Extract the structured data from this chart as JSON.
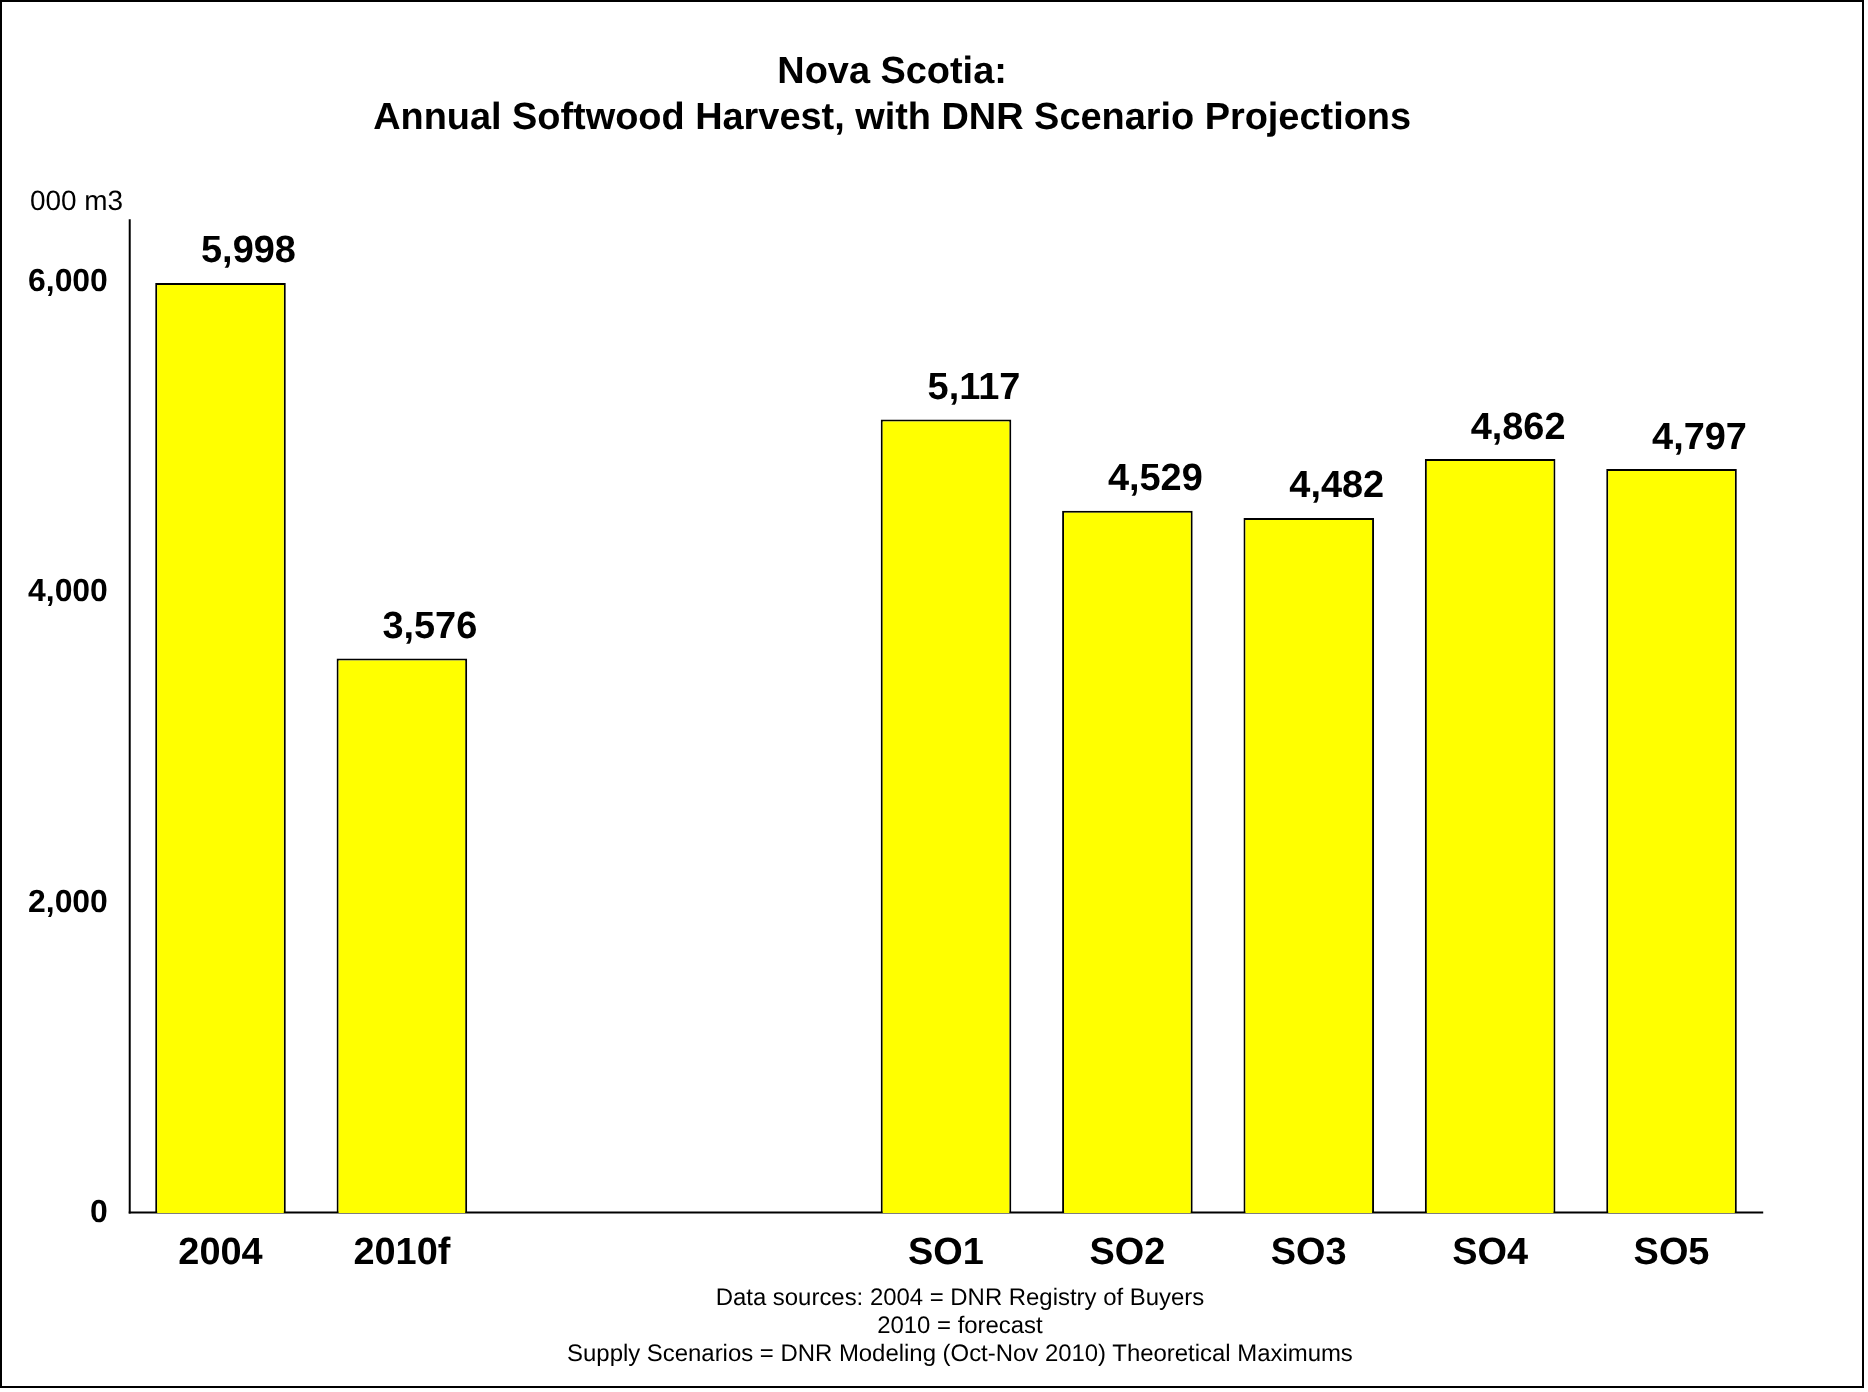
{
  "chart_data": {
    "type": "bar",
    "title": "Nova Scotia:",
    "subtitle": "Annual Softwood Harvest, with DNR Scenario Projections",
    "ylabel": "000 m3",
    "categories": [
      "2004",
      "2010f",
      null,
      null,
      "SO1",
      "SO2",
      "SO3",
      "SO4",
      "SO5"
    ],
    "values": [
      5998,
      3576,
      null,
      null,
      5117,
      4529,
      4482,
      4862,
      4797
    ],
    "value_labels": [
      "5,998",
      "3,576",
      null,
      null,
      "5,117",
      "4,529",
      "4,482",
      "4,862",
      "4,797"
    ],
    "color": "#ffff00",
    "ylim": [
      0,
      6400
    ],
    "yticks": [
      0,
      {
        "value": 2000,
        "label": "2,000"
      },
      {
        "value": 4000,
        "label": "4,000"
      },
      {
        "value": 6000,
        "label": "6,000"
      }
    ],
    "grid": false,
    "legend": false,
    "annotations": [
      "Data sources: 2004 = DNR Registry of Buyers",
      "2010 = forecast",
      "Supply Scenarios = DNR Modeling (Oct-Nov 2010) Theoretical Maximums"
    ]
  }
}
